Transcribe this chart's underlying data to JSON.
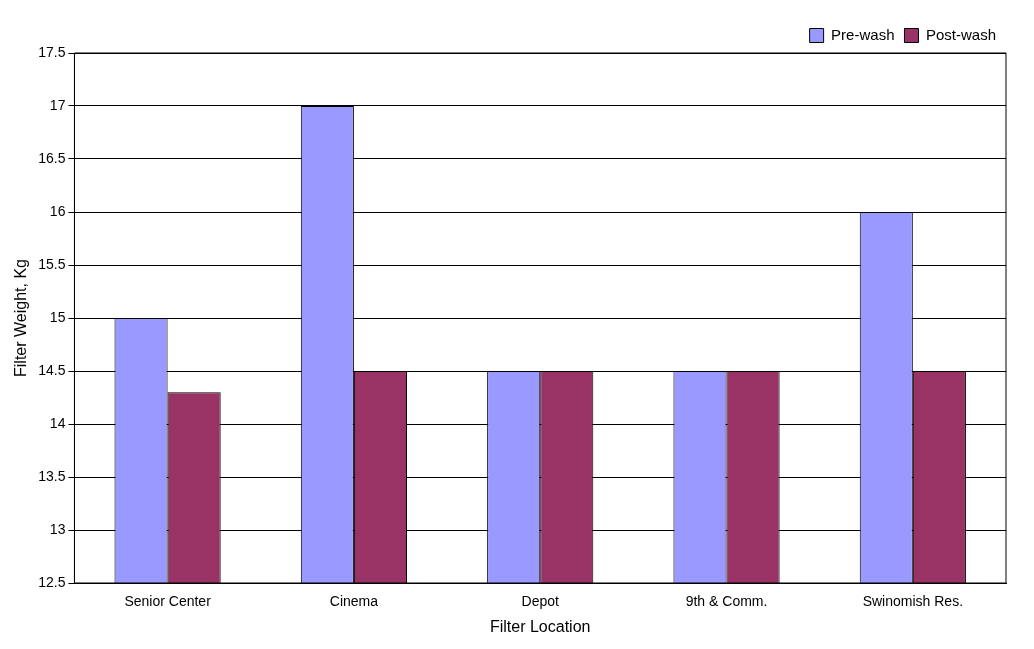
{
  "chart_data": {
    "type": "bar",
    "xlabel": "Filter Location",
    "ylabel": "Filter Weight, Kg",
    "categories": [
      "Senior Center",
      "Cinema",
      "Depot",
      "9th & Comm.",
      "Swinomish Res."
    ],
    "series": [
      {
        "name": "Pre-wash",
        "color": "#9999ff",
        "values": [
          15,
          17,
          14.5,
          14.5,
          16
        ]
      },
      {
        "name": "Post-wash",
        "color": "#993366",
        "values": [
          14.3,
          14.5,
          14.5,
          14.5,
          14.5
        ]
      }
    ],
    "ylim": [
      12.5,
      17.5
    ],
    "yticks": [
      12.5,
      13,
      13.5,
      14,
      14.5,
      15,
      15.5,
      16,
      16.5,
      17,
      17.5
    ],
    "grid": "y",
    "legend": "top right"
  }
}
